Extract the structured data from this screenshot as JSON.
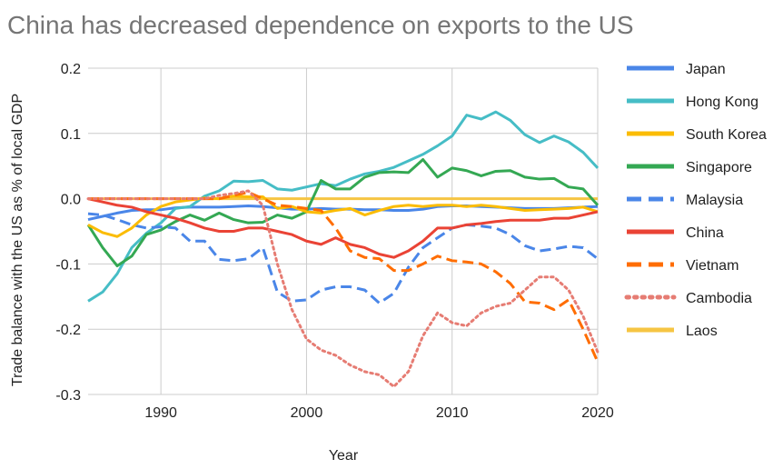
{
  "chart_data": {
    "type": "line",
    "title": "China has decreased dependence on exports to the US",
    "xlabel": "Year",
    "ylabel": "Trade balance with the US as % of local GDP",
    "xlim": [
      1985,
      2020
    ],
    "ylim": [
      -0.3,
      0.2
    ],
    "xticks": [
      1990,
      2000,
      2010,
      2020
    ],
    "xtick_labels": [
      "1990",
      "2000",
      "2010",
      "2020"
    ],
    "yticks": [
      -0.3,
      -0.2,
      -0.1,
      0.0,
      0.1,
      0.2
    ],
    "ytick_labels": [
      "-0.3",
      "-0.2",
      "-0.1",
      "0.0",
      "0.1",
      "0.2"
    ],
    "grid": true,
    "legend_position": "right",
    "x": [
      1985,
      1986,
      1987,
      1988,
      1989,
      1990,
      1991,
      1992,
      1993,
      1994,
      1995,
      1996,
      1997,
      1998,
      1999,
      2000,
      2001,
      2002,
      2003,
      2004,
      2005,
      2006,
      2007,
      2008,
      2009,
      2010,
      2011,
      2012,
      2013,
      2014,
      2015,
      2016,
      2017,
      2018,
      2019,
      2020
    ],
    "series": [
      {
        "name": "Japan",
        "color": "#4a86e8",
        "dash": "solid",
        "values": [
          -0.032,
          -0.027,
          -0.022,
          -0.018,
          -0.017,
          -0.017,
          -0.014,
          -0.013,
          -0.013,
          -0.013,
          -0.012,
          -0.011,
          -0.012,
          -0.014,
          -0.016,
          -0.016,
          -0.015,
          -0.016,
          -0.016,
          -0.017,
          -0.017,
          -0.018,
          -0.018,
          -0.016,
          -0.012,
          -0.011,
          -0.011,
          -0.012,
          -0.013,
          -0.014,
          -0.015,
          -0.015,
          -0.015,
          -0.014,
          -0.013,
          -0.012
        ]
      },
      {
        "name": "Hong Kong",
        "color": "#46bdc6",
        "dash": "solid",
        "values": [
          -0.157,
          -0.143,
          -0.115,
          -0.075,
          -0.053,
          -0.037,
          -0.015,
          -0.012,
          0.004,
          0.012,
          0.027,
          0.026,
          0.028,
          0.015,
          0.013,
          0.018,
          0.023,
          0.02,
          0.03,
          0.038,
          0.042,
          0.048,
          0.058,
          0.068,
          0.081,
          0.096,
          0.128,
          0.122,
          0.133,
          0.12,
          0.098,
          0.086,
          0.096,
          0.087,
          0.071,
          0.047
        ]
      },
      {
        "name": "South Korea",
        "color": "#fbbc04",
        "dash": "solid",
        "values": [
          -0.04,
          -0.052,
          -0.058,
          -0.045,
          -0.025,
          -0.012,
          -0.005,
          -0.002,
          0.001,
          0.0,
          0.004,
          0.003,
          0.003,
          -0.015,
          -0.012,
          -0.02,
          -0.022,
          -0.018,
          -0.015,
          -0.025,
          -0.018,
          -0.012,
          -0.01,
          -0.012,
          -0.01,
          -0.01,
          -0.012,
          -0.01,
          -0.012,
          -0.015,
          -0.018,
          -0.017,
          -0.016,
          -0.015,
          -0.013,
          -0.02
        ]
      },
      {
        "name": "Singapore",
        "color": "#34a853",
        "dash": "solid",
        "values": [
          -0.04,
          -0.075,
          -0.103,
          -0.088,
          -0.055,
          -0.048,
          -0.035,
          -0.025,
          -0.033,
          -0.022,
          -0.032,
          -0.037,
          -0.036,
          -0.025,
          -0.03,
          -0.02,
          0.028,
          0.015,
          0.015,
          0.033,
          0.04,
          0.041,
          0.04,
          0.06,
          0.033,
          0.047,
          0.043,
          0.035,
          0.042,
          0.043,
          0.033,
          0.03,
          0.031,
          0.018,
          0.015,
          -0.01
        ]
      },
      {
        "name": "Malaysia",
        "color": "#4a86e8",
        "dash": "dashed",
        "values": [
          -0.023,
          -0.025,
          -0.032,
          -0.04,
          -0.045,
          -0.043,
          -0.045,
          -0.065,
          -0.065,
          -0.093,
          -0.095,
          -0.092,
          -0.075,
          -0.143,
          -0.157,
          -0.155,
          -0.14,
          -0.135,
          -0.135,
          -0.14,
          -0.16,
          -0.145,
          -0.105,
          -0.075,
          -0.06,
          -0.045,
          -0.04,
          -0.042,
          -0.045,
          -0.055,
          -0.072,
          -0.08,
          -0.077,
          -0.073,
          -0.075,
          -0.092
        ]
      },
      {
        "name": "China",
        "color": "#ea4335",
        "dash": "solid",
        "values": [
          0.0,
          -0.005,
          -0.01,
          -0.013,
          -0.02,
          -0.025,
          -0.03,
          -0.037,
          -0.045,
          -0.05,
          -0.05,
          -0.045,
          -0.045,
          -0.05,
          -0.055,
          -0.065,
          -0.07,
          -0.06,
          -0.07,
          -0.075,
          -0.085,
          -0.09,
          -0.08,
          -0.065,
          -0.045,
          -0.045,
          -0.04,
          -0.038,
          -0.035,
          -0.033,
          -0.033,
          -0.033,
          -0.03,
          -0.03,
          -0.025,
          -0.02
        ]
      },
      {
        "name": "Vietnam",
        "color": "#ff6d01",
        "dash": "dashed",
        "values": [
          0.0,
          0.0,
          0.0,
          0.0,
          0.0,
          0.0,
          0.0,
          0.0,
          0.0,
          0.0,
          0.005,
          0.01,
          0.0,
          -0.01,
          -0.012,
          -0.015,
          -0.018,
          -0.045,
          -0.08,
          -0.09,
          -0.092,
          -0.11,
          -0.11,
          -0.1,
          -0.088,
          -0.095,
          -0.097,
          -0.1,
          -0.112,
          -0.13,
          -0.158,
          -0.16,
          -0.17,
          -0.155,
          -0.2,
          -0.25
        ]
      },
      {
        "name": "Cambodia",
        "color": "#e67c73",
        "dash": "dotted",
        "values": [
          0.0,
          0.0,
          0.0,
          0.0,
          0.0,
          0.0,
          0.0,
          0.0,
          0.0,
          0.005,
          0.008,
          0.012,
          -0.01,
          -0.1,
          -0.17,
          -0.215,
          -0.232,
          -0.24,
          -0.255,
          -0.265,
          -0.27,
          -0.288,
          -0.265,
          -0.21,
          -0.175,
          -0.19,
          -0.195,
          -0.175,
          -0.165,
          -0.16,
          -0.14,
          -0.12,
          -0.12,
          -0.14,
          -0.18,
          -0.235
        ]
      },
      {
        "name": "Laos",
        "color": "#f6c543",
        "dash": "solid",
        "values": [
          0.0,
          0.0,
          0.0,
          0.0,
          0.0,
          0.0,
          0.0,
          0.0,
          0.0,
          0.0,
          0.0,
          0.0,
          0.0,
          0.0,
          0.0,
          0.0,
          0.0,
          0.0,
          0.0,
          0.0,
          0.0,
          0.0,
          0.0,
          0.0,
          0.0,
          0.0,
          0.0,
          0.0,
          0.0,
          0.0,
          0.0,
          0.0,
          0.0,
          0.0,
          0.0,
          0.0
        ]
      }
    ]
  }
}
